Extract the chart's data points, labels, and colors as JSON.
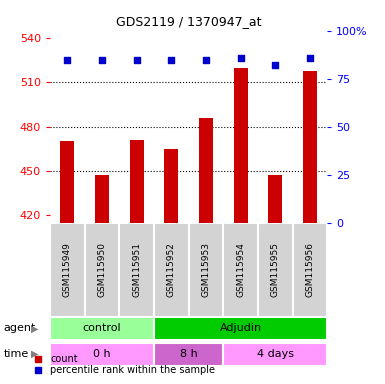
{
  "title": "GDS2119 / 1370947_at",
  "samples": [
    "GSM115949",
    "GSM115950",
    "GSM115951",
    "GSM115952",
    "GSM115953",
    "GSM115954",
    "GSM115955",
    "GSM115956"
  ],
  "bar_values": [
    470,
    447,
    471,
    465,
    486,
    520,
    447,
    518
  ],
  "percentile_values": [
    85,
    85,
    85,
    85,
    85,
    86,
    82,
    86
  ],
  "bar_bottom": 415,
  "ylim_left": [
    415,
    545
  ],
  "ylim_right": [
    0,
    100
  ],
  "yticks_left": [
    420,
    450,
    480,
    510,
    540
  ],
  "yticks_right": [
    0,
    25,
    50,
    75,
    100
  ],
  "ytick_right_labels": [
    "0",
    "25",
    "50",
    "75",
    "100%"
  ],
  "bar_color": "#cc0000",
  "dot_color": "#0000cc",
  "agent_groups": [
    {
      "label": "control",
      "start": 0,
      "end": 3,
      "color": "#99ff99"
    },
    {
      "label": "Adjudin",
      "start": 3,
      "end": 8,
      "color": "#00cc00"
    }
  ],
  "time_groups": [
    {
      "label": "0 h",
      "start": 0,
      "end": 3,
      "color": "#ff99ff"
    },
    {
      "label": "8 h",
      "start": 3,
      "end": 5,
      "color": "#cc66cc"
    },
    {
      "label": "4 days",
      "start": 5,
      "end": 8,
      "color": "#ff99ff"
    }
  ],
  "legend_count_label": "count",
  "legend_percentile_label": "percentile rank within the sample",
  "agent_label": "agent",
  "time_label": "time",
  "sample_box_color": "#d3d3d3",
  "grid_lines": [
    450,
    480,
    510
  ]
}
